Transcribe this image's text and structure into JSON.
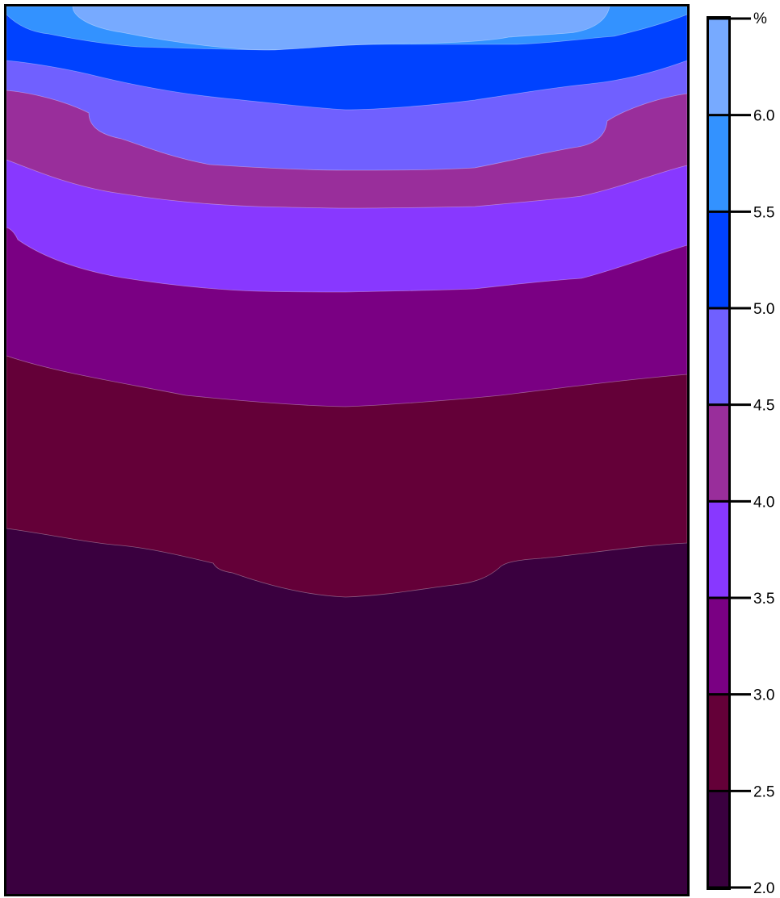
{
  "chart_data": {
    "type": "heatmap",
    "subtype": "filled-contour",
    "title": "",
    "xlabel": "",
    "ylabel": "",
    "colorbar": {
      "unit": "%",
      "range": [
        2.0,
        6.5
      ],
      "ticks": [
        2.0,
        2.5,
        3.0,
        3.5,
        4.0,
        4.5,
        5.0,
        5.5,
        6.0
      ],
      "tick_labels": [
        "2.0",
        "2.5",
        "3.0",
        "3.5",
        "4.0",
        "4.5",
        "5.0",
        "5.5",
        "6.0"
      ],
      "placement": "right"
    },
    "levels": [
      {
        "min": 2.0,
        "max": 2.5,
        "color": "#3a003f"
      },
      {
        "min": 2.5,
        "max": 3.0,
        "color": "#640038"
      },
      {
        "min": 3.0,
        "max": 3.5,
        "color": "#7a0083"
      },
      {
        "min": 3.5,
        "max": 4.0,
        "color": "#8838ff"
      },
      {
        "min": 4.0,
        "max": 4.5,
        "color": "#992e9b"
      },
      {
        "min": 4.5,
        "max": 5.0,
        "color": "#7060ff"
      },
      {
        "min": 5.0,
        "max": 5.5,
        "color": "#0042ff"
      },
      {
        "min": 5.5,
        "max": 6.0,
        "color": "#3392ff"
      },
      {
        "min": 6.0,
        "max": 6.5,
        "color": "#77aaff"
      }
    ],
    "pattern": "values decrease from top to bottom; contour bands bow downward in the center",
    "grid": false
  }
}
